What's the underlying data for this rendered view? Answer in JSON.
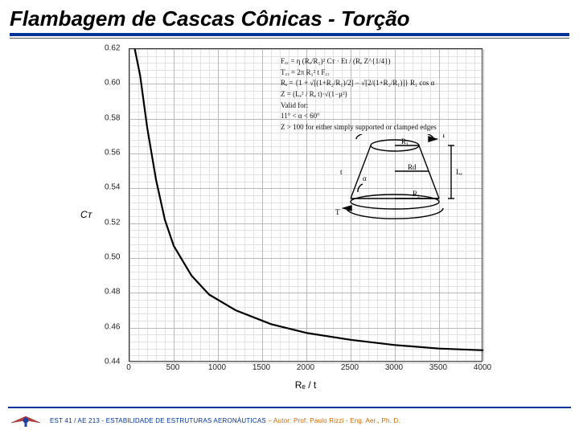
{
  "title": "Flambagem de Cascas Cônicas - Torção",
  "chart": {
    "type": "line",
    "xlabel": "Rₑ / t",
    "ylabel": "Cᴛ",
    "xlim": [
      0,
      4000
    ],
    "ylim": [
      0.44,
      0.62
    ],
    "xticks": [
      0,
      500,
      1000,
      1500,
      2000,
      2500,
      3000,
      3500,
      4000
    ],
    "yticks": [
      0.44,
      0.46,
      0.48,
      0.5,
      0.52,
      0.54,
      0.56,
      0.58,
      0.6,
      0.62
    ],
    "x_minor_per_major": 5,
    "y_minor_per_major": 5,
    "curve_data": [
      {
        "x": 60,
        "y": 0.62
      },
      {
        "x": 120,
        "y": 0.605
      },
      {
        "x": 200,
        "y": 0.575
      },
      {
        "x": 300,
        "y": 0.545
      },
      {
        "x": 400,
        "y": 0.522
      },
      {
        "x": 500,
        "y": 0.507
      },
      {
        "x": 700,
        "y": 0.49
      },
      {
        "x": 900,
        "y": 0.479
      },
      {
        "x": 1200,
        "y": 0.47
      },
      {
        "x": 1600,
        "y": 0.462
      },
      {
        "x": 2000,
        "y": 0.457
      },
      {
        "x": 2500,
        "y": 0.453
      },
      {
        "x": 3000,
        "y": 0.45
      },
      {
        "x": 3500,
        "y": 0.448
      },
      {
        "x": 4000,
        "y": 0.447
      }
    ],
    "curve_color": "#000000",
    "curve_width": 2.2,
    "grid_major_color": "#b8b8b8",
    "grid_minor_color": "#e2e2e2",
    "background_color": "#ffffff"
  },
  "equations": {
    "line1": "F꜀ᵣ = η (Rₑ/R₁)² Cᴛ · Et / (Rₑ Z^{1/4})",
    "line2": "T꜀ᵣ = 2π R₁² t F꜀ᵣ",
    "line3": "Rₑ = {1 + √[(1+R₂/R₁)/2] − √[2/(1+R₂/R₁)]} R₁ cos α",
    "line4": "Z = (Lₑ² / Rₑ t)·√(1−μ²)",
    "valid_label": "Valid for:",
    "valid_range": "11° < α < 60°",
    "valid_cond": "Z > 100  for either simply supported or clamped edges"
  },
  "diagram_labels": {
    "T": "T",
    "R1": "R₁",
    "R2": "R₂",
    "Rd": "Rd",
    "Le": "Lₑ",
    "alpha": "α",
    "t": "t"
  },
  "footer": {
    "course": "EST 41 / AE 213  -  ESTABILIDADE DE ESTRUTURAS AERONÁUTICAS",
    "author": "  –  Autor: Prof. Paulo Rizzi - Eng. Aer., Ph. D."
  }
}
